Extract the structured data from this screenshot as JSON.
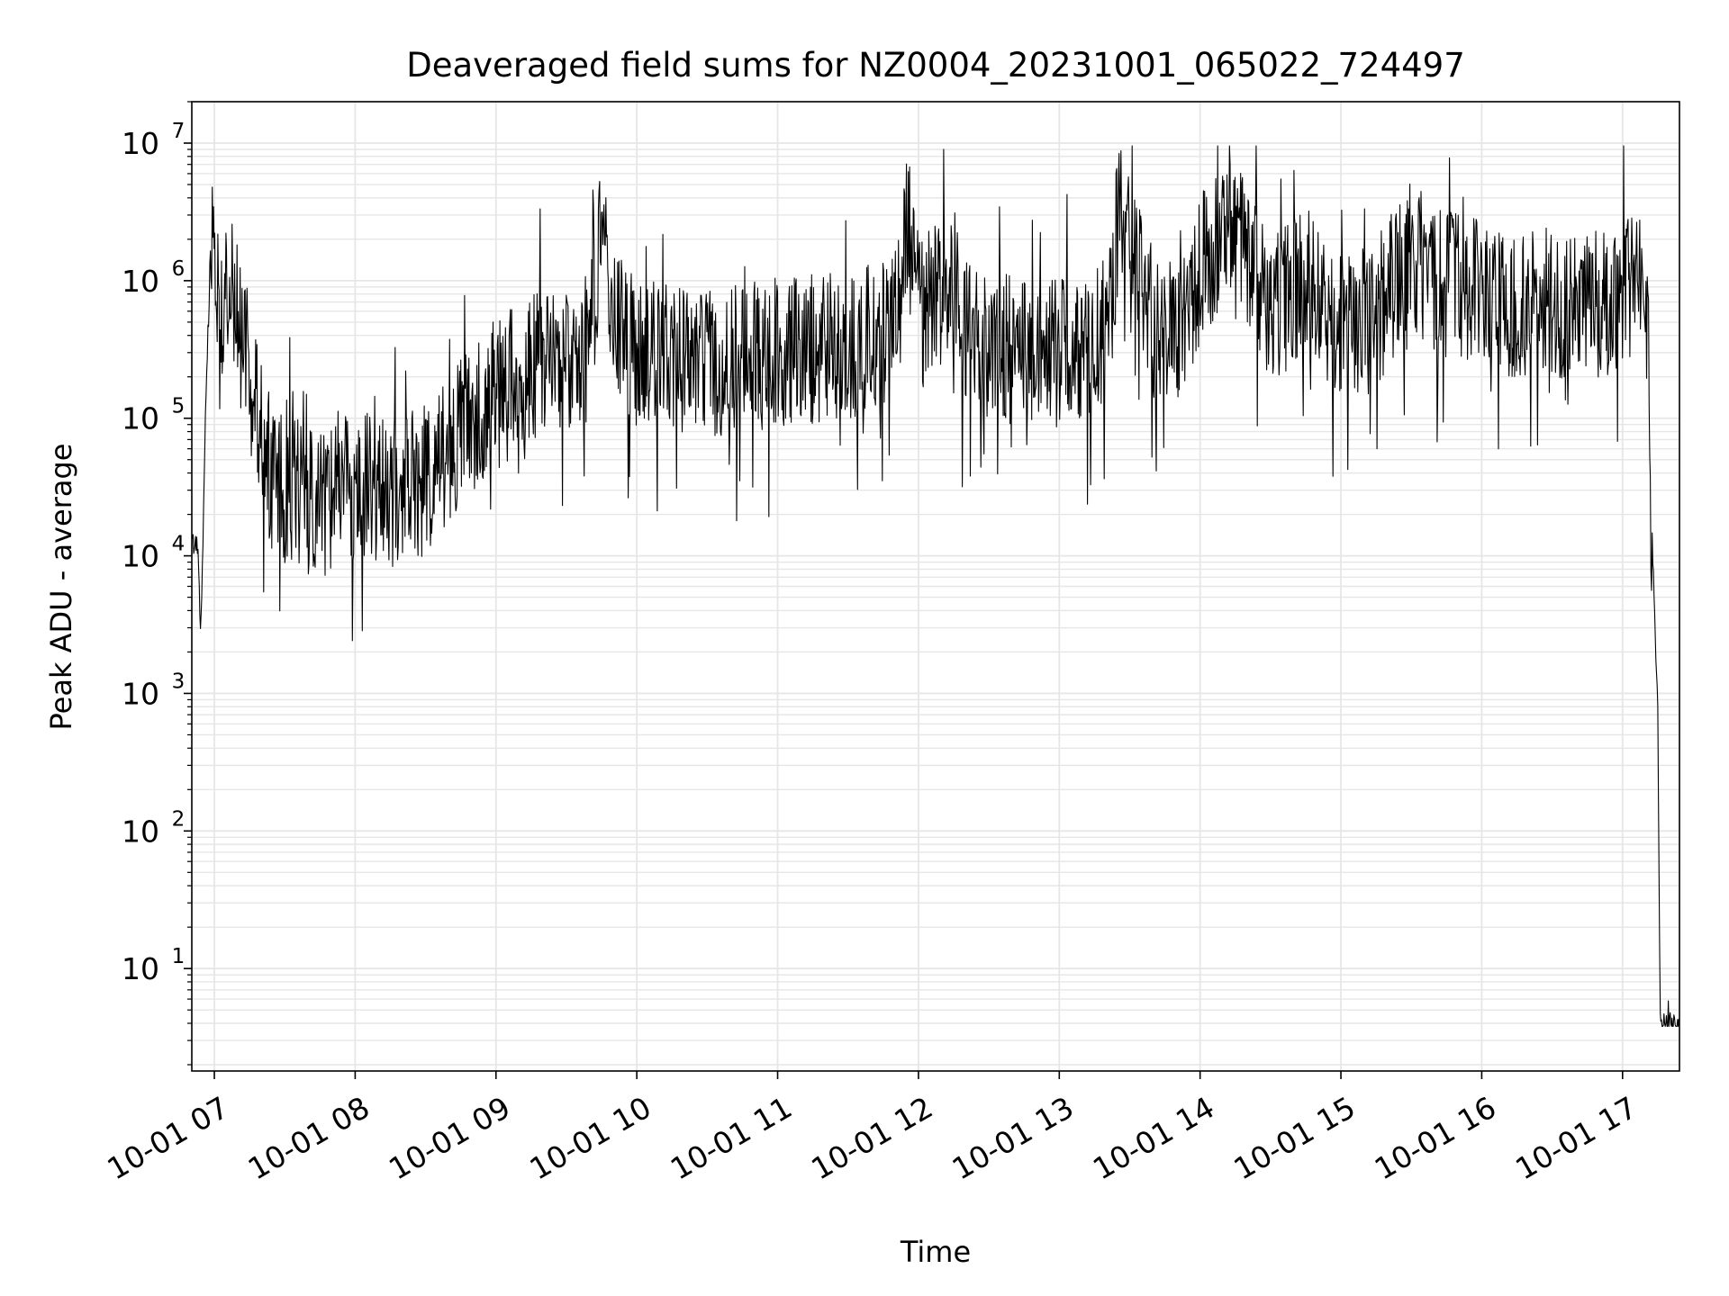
{
  "chart_data": {
    "type": "line",
    "title": "Deaveraged field sums for NZ0004_20231001_065022_724497",
    "xlabel": "Time",
    "ylabel": "Peak ADU - average",
    "xscale": "time",
    "yscale": "log",
    "xlim": [
      "2023-10-01 06:50:24",
      "2023-10-01 17:24:15"
    ],
    "ylim": [
      1.8,
      20000000
    ],
    "grid": true,
    "legend": "none",
    "line_color": "#000000",
    "grid_color": "#e6e6e6",
    "x_ticks": [
      {
        "value": "2023-10-01 07:00",
        "label": "10-01 07"
      },
      {
        "value": "2023-10-01 08:00",
        "label": "10-01 08"
      },
      {
        "value": "2023-10-01 09:00",
        "label": "10-01 09"
      },
      {
        "value": "2023-10-01 10:00",
        "label": "10-01 10"
      },
      {
        "value": "2023-10-01 11:00",
        "label": "10-01 11"
      },
      {
        "value": "2023-10-01 12:00",
        "label": "10-01 12"
      },
      {
        "value": "2023-10-01 13:00",
        "label": "10-01 13"
      },
      {
        "value": "2023-10-01 14:00",
        "label": "10-01 14"
      },
      {
        "value": "2023-10-01 15:00",
        "label": "10-01 15"
      },
      {
        "value": "2023-10-01 16:00",
        "label": "10-01 16"
      },
      {
        "value": "2023-10-01 17:00",
        "label": "10-01 17"
      }
    ],
    "y_ticks": [
      {
        "value": 10,
        "base": "10",
        "exp": "1"
      },
      {
        "value": 100,
        "base": "10",
        "exp": "2"
      },
      {
        "value": 1000,
        "base": "10",
        "exp": "3"
      },
      {
        "value": 10000,
        "base": "10",
        "exp": "4"
      },
      {
        "value": 100000,
        "base": "10",
        "exp": "5"
      },
      {
        "value": 1000000,
        "base": "10",
        "exp": "6"
      },
      {
        "value": 10000000,
        "base": "10",
        "exp": "7"
      }
    ],
    "series": [
      {
        "x": [
          "2023-10-01 06:50",
          "2023-10-01 06:52",
          "2023-10-01 06:53",
          "2023-10-01 06:54",
          "2023-10-01 06:55",
          "2023-10-01 06:56",
          "2023-10-01 06:57",
          "2023-10-01 06:58",
          "2023-10-01 06:59",
          "2023-10-01 07:00",
          "2023-10-01 07:01",
          "2023-10-01 07:02",
          "2023-10-01 07:04",
          "2023-10-01 07:06",
          "2023-10-01 07:08",
          "2023-10-01 07:10",
          "2023-10-01 07:12",
          "2023-10-01 07:15",
          "2023-10-01 07:18",
          "2023-10-01 07:22",
          "2023-10-01 07:26",
          "2023-10-01 07:30",
          "2023-10-01 07:35",
          "2023-10-01 07:40",
          "2023-10-01 07:45",
          "2023-10-01 07:50",
          "2023-10-01 07:55",
          "2023-10-01 08:00",
          "2023-10-01 08:10",
          "2023-10-01 08:20",
          "2023-10-01 08:30",
          "2023-10-01 08:40",
          "2023-10-01 08:50",
          "2023-10-01 09:00",
          "2023-10-01 09:20",
          "2023-10-01 09:40",
          "2023-10-01 09:45",
          "2023-10-01 09:50",
          "2023-10-01 10:00",
          "2023-10-01 10:30",
          "2023-10-01 11:00",
          "2023-10-01 11:30",
          "2023-10-01 11:45",
          "2023-10-01 11:52",
          "2023-10-01 11:55",
          "2023-10-01 12:00",
          "2023-10-01 12:15",
          "2023-10-01 12:20",
          "2023-10-01 12:30",
          "2023-10-01 12:45",
          "2023-10-01 13:00",
          "2023-10-01 13:15",
          "2023-10-01 13:22",
          "2023-10-01 13:25",
          "2023-10-01 13:30",
          "2023-10-01 13:40",
          "2023-10-01 13:50",
          "2023-10-01 14:00",
          "2023-10-01 14:15",
          "2023-10-01 14:30",
          "2023-10-01 14:45",
          "2023-10-01 15:00",
          "2023-10-01 15:15",
          "2023-10-01 15:30",
          "2023-10-01 15:40",
          "2023-10-01 16:00",
          "2023-10-01 16:15",
          "2023-10-01 16:30",
          "2023-10-01 16:45",
          "2023-10-01 17:00",
          "2023-10-01 17:08",
          "2023-10-01 17:11",
          "2023-10-01 17:12",
          "2023-10-01 17:13",
          "2023-10-01 17:14",
          "2023-10-01 17:15",
          "2023-10-01 17:16",
          "2023-10-01 17:17",
          "2023-10-01 17:18",
          "2023-10-01 17:24"
        ],
        "values": [
          12000,
          12000,
          11000,
          3000,
          8000,
          70000,
          300000,
          900000,
          1500000,
          1500000,
          1200000,
          800000,
          700000,
          900000,
          800000,
          600000,
          400000,
          200000,
          100000,
          50000,
          35000,
          30000,
          28000,
          25000,
          25000,
          28000,
          30000,
          30000,
          32000,
          30000,
          35000,
          60000,
          100000,
          150000,
          250000,
          350000,
          2300000,
          500000,
          300000,
          250000,
          300000,
          350000,
          400000,
          800000,
          3000000,
          600000,
          1000000,
          400000,
          350000,
          300000,
          300000,
          350000,
          500000,
          3000000,
          1500000,
          500000,
          400000,
          1200000,
          2500000,
          600000,
          1000000,
          500000,
          600000,
          1500000,
          1000000,
          900000,
          600000,
          700000,
          650000,
          800000,
          1000000,
          600000,
          12000,
          11000,
          2500,
          900,
          4,
          4,
          4,
          4
        ]
      }
    ]
  }
}
